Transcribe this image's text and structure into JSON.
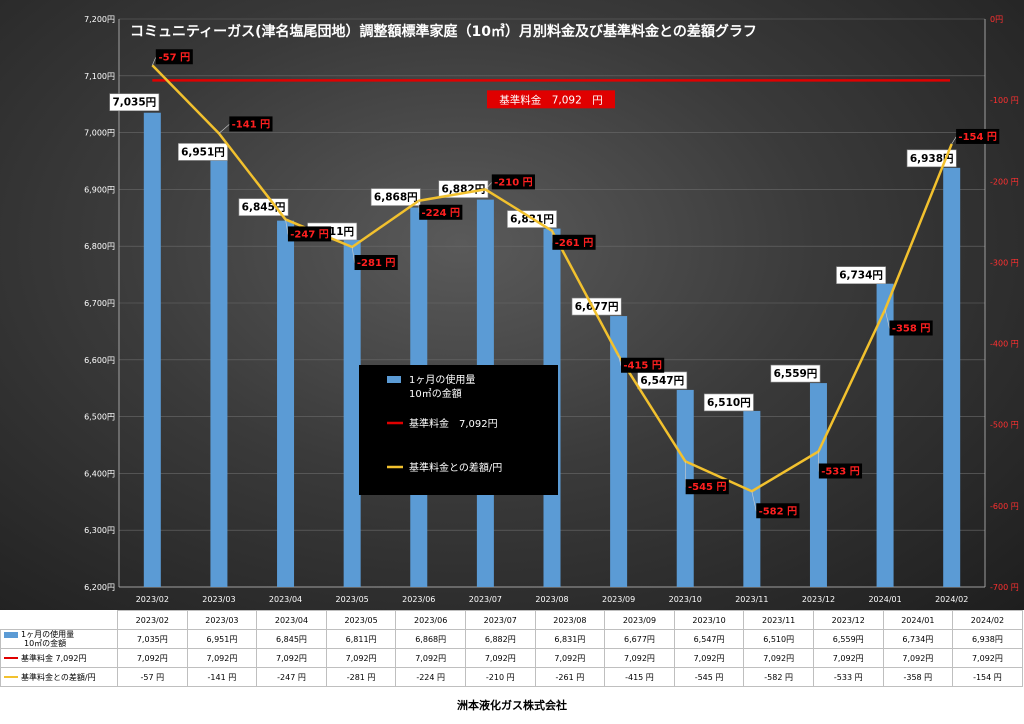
{
  "chart_data": {
    "type": "bar",
    "title": "コミュニティーガス(津名塩尾団地）調整額標準家庭（10㎥）月別料金及び基準料金との差額グラフ",
    "categories": [
      "2023/02",
      "2023/03",
      "2023/04",
      "2023/05",
      "2023/06",
      "2023/07",
      "2023/08",
      "2023/09",
      "2023/10",
      "2023/11",
      "2023/12",
      "2024/01",
      "2024/02"
    ],
    "series": [
      {
        "name": "1ヶ月の使用量 10㎥の金額",
        "type": "bar",
        "axis": "left",
        "color": "#5b9bd5",
        "values": [
          7035,
          6951,
          6845,
          6811,
          6868,
          6882,
          6831,
          6677,
          6547,
          6510,
          6559,
          6734,
          6938
        ],
        "labels": [
          "7,035円",
          "6,951円",
          "6,845円",
          "6,811円",
          "6,868円",
          "6,882円",
          "6,831円",
          "6,677円",
          "6,547円",
          "6,510円",
          "6,559円",
          "6,734円",
          "6,938円"
        ]
      },
      {
        "name": "基準料金 7,092円",
        "type": "line",
        "axis": "left",
        "color": "#e00000",
        "values": [
          7092,
          7092,
          7092,
          7092,
          7092,
          7092,
          7092,
          7092,
          7092,
          7092,
          7092,
          7092,
          7092
        ]
      },
      {
        "name": "基準料金との差額/円",
        "type": "line",
        "axis": "right",
        "color": "#f2c12e",
        "values": [
          -57,
          -141,
          -247,
          -281,
          -224,
          -210,
          -261,
          -415,
          -545,
          -582,
          -533,
          -358,
          -154
        ],
        "labels": [
          "-57 円",
          "-141 円",
          "-247 円",
          "-281 円",
          "-224 円",
          "-210 円",
          "-261 円",
          "-415 円",
          "-545 円",
          "-582 円",
          "-533 円",
          "-358 円",
          "-154 円"
        ]
      }
    ],
    "y_left": {
      "min": 6200,
      "max": 7200,
      "step": 100,
      "tick_labels": [
        "6,200円",
        "6,300円",
        "6,400円",
        "6,500円",
        "6,600円",
        "6,700円",
        "6,800円",
        "6,900円",
        "7,000円",
        "7,100円",
        "7,200円"
      ]
    },
    "y_right": {
      "min": -700,
      "max": 0,
      "step": 100,
      "tick_labels": [
        "-700 円",
        "-600 円",
        "-500 円",
        "-400 円",
        "-300 円",
        "-200 円",
        "-100 円",
        "0円"
      ]
    },
    "baseline_label": "基準料金　7,092　円",
    "legend": {
      "placement": "center",
      "items": [
        {
          "label": "1ヶ月の使用量\n10㎥の金額",
          "key": "bar",
          "color": "#5b9bd5"
        },
        {
          "label": "基準料金　7,092円",
          "key": "line",
          "color": "#e00000"
        },
        {
          "label": "基準料金との差額/円",
          "key": "line",
          "color": "#f2c12e"
        }
      ]
    },
    "colors": {
      "bar": "#5b9bd5",
      "baseline": "#e00000",
      "diff": "#f2c12e",
      "diff_label_text": "#ff2020",
      "diff_label_bg": "#000000"
    }
  },
  "table": {
    "header": [
      "2023/02",
      "2023/03",
      "2023/04",
      "2023/05",
      "2023/06",
      "2023/07",
      "2023/08",
      "2023/09",
      "2023/10",
      "2023/11",
      "2023/12",
      "2024/01",
      "2024/02"
    ],
    "rows": [
      {
        "label": "1ヶ月の使用量\n10㎥の金額",
        "key": "bar",
        "cells": [
          "7,035円",
          "6,951円",
          "6,845円",
          "6,811円",
          "6,868円",
          "6,882円",
          "6,831円",
          "6,677円",
          "6,547円",
          "6,510円",
          "6,559円",
          "6,734円",
          "6,938円"
        ]
      },
      {
        "label": "基準料金  7,092円",
        "key": "red",
        "cells": [
          "7,092円",
          "7,092円",
          "7,092円",
          "7,092円",
          "7,092円",
          "7,092円",
          "7,092円",
          "7,092円",
          "7,092円",
          "7,092円",
          "7,092円",
          "7,092円",
          "7,092円"
        ]
      },
      {
        "label": "基準料金との差額/円",
        "key": "yellow",
        "cells": [
          "-57 円",
          "-141 円",
          "-247 円",
          "-281 円",
          "-224 円",
          "-210 円",
          "-261 円",
          "-415 円",
          "-545 円",
          "-582 円",
          "-533 円",
          "-358 円",
          "-154 円"
        ]
      }
    ]
  },
  "footer": "洲本液化ガス株式会社"
}
